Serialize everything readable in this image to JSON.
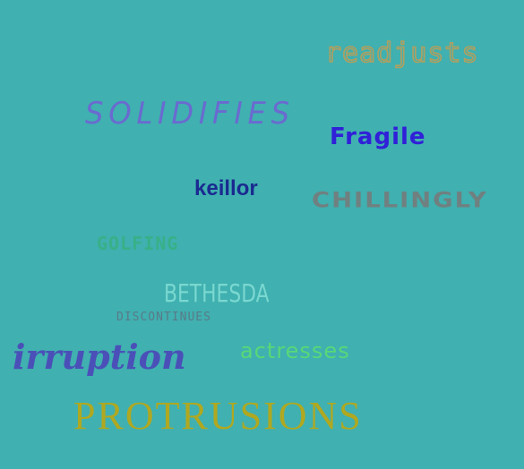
{
  "background_color": "#40b0b0",
  "words": {
    "readjusts": "readjusts",
    "solidifies": "SOLIDIFIES",
    "fragile": "Fragile",
    "keillor": "keillor",
    "chillingly": "CHILLINGLY",
    "golfing": "GOLFING",
    "bethesda": "BETHESDA",
    "discontinues": "DISCONTINUES",
    "irruption": "irruption",
    "actresses": "actresses",
    "protrusions": "PROTRUSIONS"
  },
  "colors": {
    "readjusts": "#b0a060",
    "solidifies": "#6a6ad0",
    "fragile": "#3020d8",
    "keillor": "#1a2a90",
    "chillingly": "#708080",
    "golfing": "#38b088",
    "bethesda": "#7ad8d0",
    "discontinues": "#5a7a88",
    "irruption": "#4a50b8",
    "actresses": "#58d878",
    "protrusions": "#b0a820"
  }
}
